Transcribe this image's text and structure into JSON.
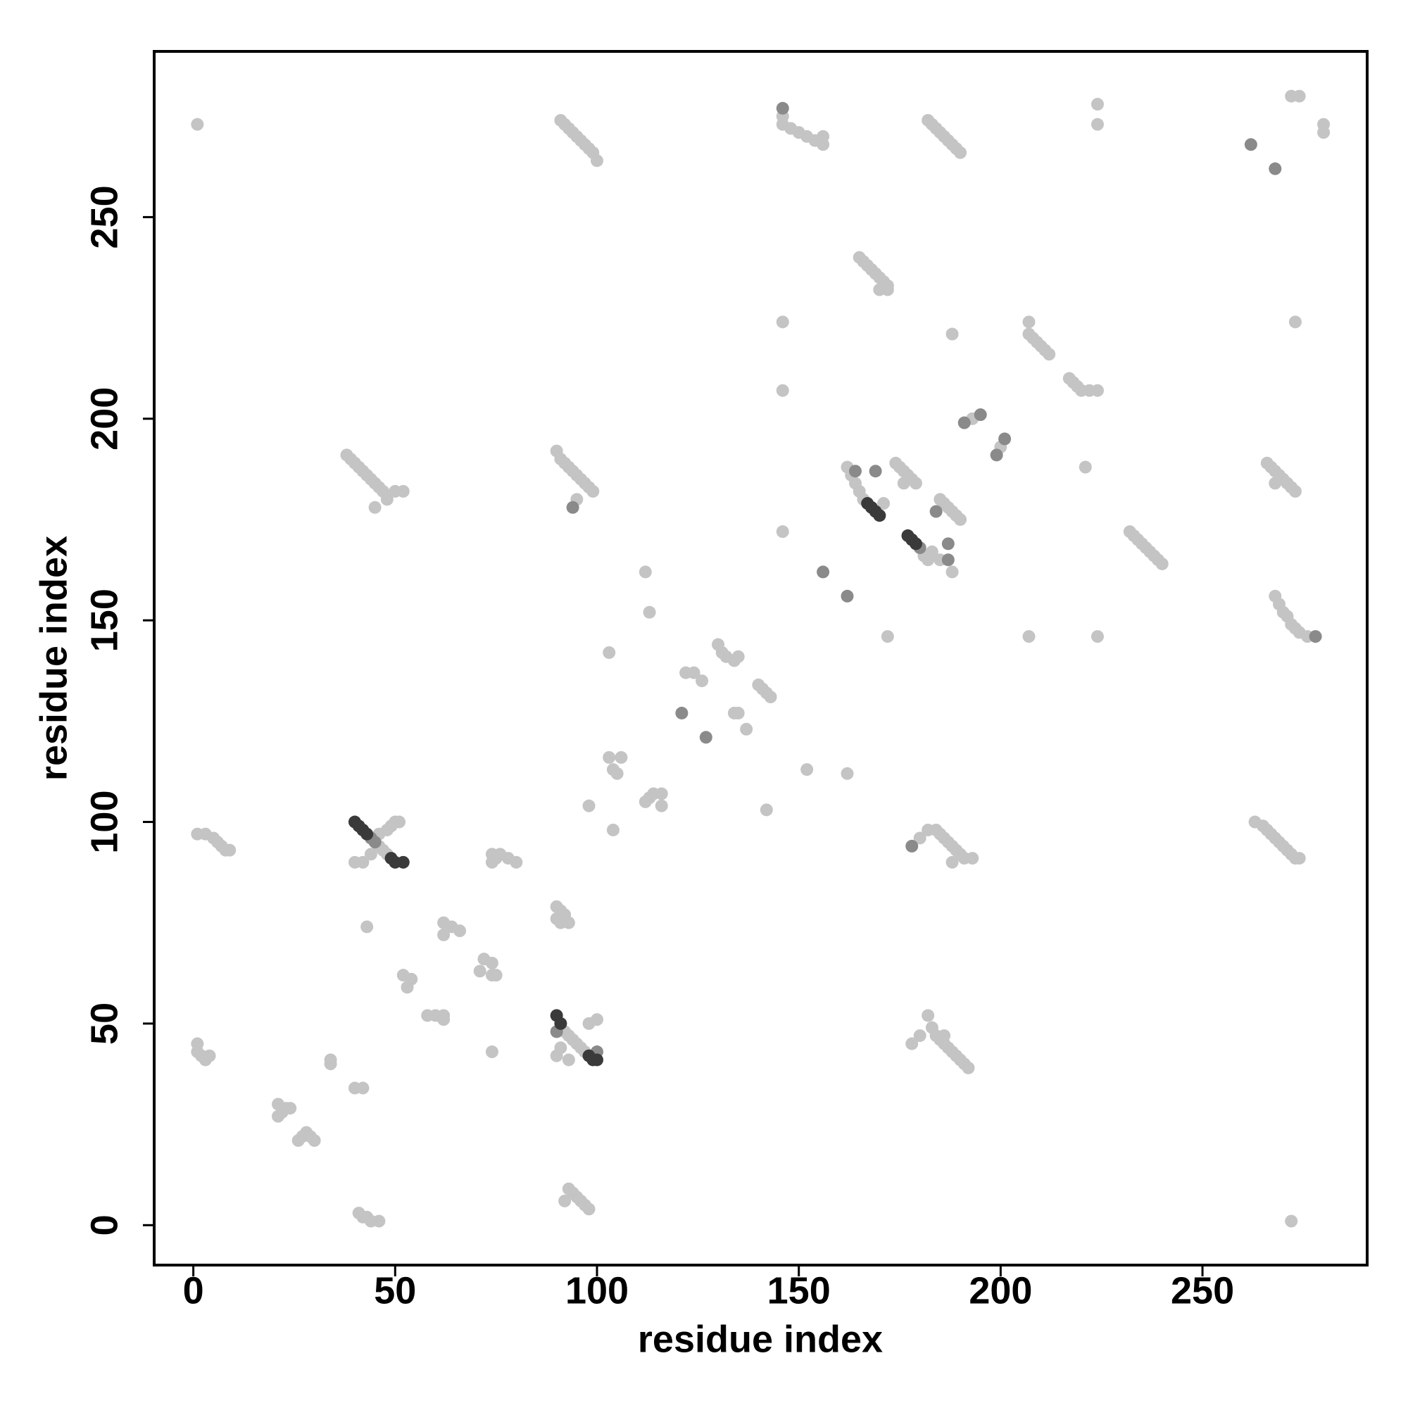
{
  "chart_data": {
    "type": "scatter",
    "x_label": "residue index",
    "y_label": "residue index",
    "xlim": [
      -9.7,
      290.8
    ],
    "ylim": [
      -9.9,
      291.1
    ],
    "xticks": [
      0,
      50,
      100,
      150,
      200,
      250
    ],
    "yticks": [
      0,
      50,
      100,
      150,
      200,
      250
    ],
    "series": [
      {
        "color": "#c4c4c4",
        "x": [
          1,
          91,
          92,
          93,
          94,
          95,
          96,
          97,
          98,
          99,
          100,
          146,
          146,
          148,
          150,
          152,
          154,
          156,
          156,
          182,
          183,
          184,
          185,
          186,
          187,
          188,
          189,
          190,
          224,
          224,
          272,
          274,
          280,
          280,
          165,
          166,
          167,
          168,
          169,
          170,
          171,
          172,
          170,
          172,
          146,
          146,
          188,
          207,
          207,
          208,
          209,
          210,
          211,
          212,
          217,
          218,
          219,
          220,
          222,
          224,
          273,
          193,
          200,
          221,
          38,
          39,
          40,
          41,
          42,
          43,
          44,
          45,
          46,
          47,
          48,
          50,
          52,
          45,
          90,
          91,
          92,
          93,
          94,
          95,
          96,
          97,
          98,
          99,
          95,
          146,
          162,
          163,
          164,
          165,
          166,
          171,
          174,
          175,
          176,
          177,
          178,
          179,
          176,
          181,
          182,
          183,
          185,
          186,
          187,
          188,
          189,
          190,
          188,
          185,
          172,
          232,
          233,
          234,
          235,
          236,
          237,
          238,
          239,
          240,
          266,
          267,
          268,
          269,
          270,
          271,
          272,
          273,
          268,
          268,
          269,
          270,
          271,
          272,
          273,
          274,
          276,
          207,
          224,
          112,
          113,
          103,
          122,
          124,
          126,
          130,
          131,
          132,
          134,
          135,
          140,
          141,
          142,
          143,
          134,
          135,
          137,
          98,
          104,
          103,
          106,
          104,
          105,
          112,
          113,
          114,
          116,
          116,
          152,
          162,
          142,
          46,
          47,
          48,
          50,
          51,
          49,
          48,
          46,
          44,
          42,
          40,
          1,
          3,
          5,
          6,
          7,
          8,
          9,
          74,
          76,
          75,
          78,
          80,
          74,
          180,
          182,
          184,
          185,
          186,
          187,
          188,
          189,
          190,
          191,
          193,
          188,
          263,
          265,
          266,
          267,
          268,
          269,
          270,
          271,
          272,
          273,
          274,
          90,
          91,
          92,
          92,
          93,
          91,
          90,
          43,
          62,
          62,
          64,
          66,
          72,
          74,
          71,
          75,
          74,
          52,
          53,
          54,
          58,
          60,
          62,
          62,
          92,
          93,
          94,
          95,
          96,
          97,
          98,
          100,
          91,
          90,
          93,
          74,
          182,
          183,
          184,
          185,
          186,
          187,
          188,
          189,
          190,
          191,
          192,
          178,
          180,
          186,
          1,
          1,
          2,
          3,
          4,
          34,
          34,
          40,
          42,
          21,
          22,
          23,
          24,
          21,
          27,
          28,
          29,
          30,
          26,
          41,
          42,
          43,
          44,
          46,
          93,
          94,
          95,
          96,
          97,
          98,
          92,
          272
        ],
        "values": [
          273,
          274,
          273,
          272,
          271,
          270,
          269,
          268,
          267,
          266,
          264,
          275,
          273,
          272,
          271,
          270,
          269,
          268,
          270,
          274,
          273,
          272,
          271,
          270,
          269,
          268,
          267,
          266,
          278,
          273,
          280,
          280,
          273,
          271,
          240,
          239,
          238,
          237,
          236,
          235,
          234,
          233,
          232,
          232,
          224,
          207,
          221,
          224,
          221,
          220,
          219,
          218,
          217,
          216,
          210,
          209,
          208,
          207,
          207,
          207,
          224,
          200,
          193,
          188,
          191,
          190,
          189,
          188,
          187,
          186,
          185,
          184,
          183,
          182,
          180,
          182,
          182,
          178,
          192,
          190,
          189,
          188,
          187,
          186,
          185,
          184,
          183,
          182,
          180,
          172,
          188,
          186,
          184,
          182,
          180,
          179,
          189,
          188,
          187,
          186,
          185,
          184,
          184,
          166,
          165,
          167,
          180,
          179,
          178,
          177,
          176,
          175,
          162,
          165,
          146,
          172,
          171,
          170,
          169,
          168,
          167,
          166,
          165,
          164,
          189,
          188,
          187,
          186,
          185,
          184,
          183,
          182,
          184,
          156,
          154,
          152,
          151,
          149,
          148,
          147,
          146,
          146,
          146,
          162,
          152,
          142,
          137,
          137,
          135,
          144,
          142,
          141,
          140,
          141,
          134,
          133,
          132,
          131,
          127,
          127,
          123,
          104,
          98,
          116,
          116,
          113,
          112,
          105,
          106,
          107,
          104,
          107,
          113,
          112,
          103,
          94,
          93,
          92,
          100,
          100,
          99,
          98,
          97,
          92,
          90,
          90,
          97,
          97,
          96,
          95,
          94,
          93,
          93,
          92,
          92,
          91,
          91,
          90,
          90,
          96,
          98,
          98,
          97,
          96,
          95,
          94,
          93,
          92,
          91,
          91,
          90,
          100,
          99,
          98,
          97,
          96,
          95,
          94,
          93,
          92,
          91,
          91,
          79,
          78,
          77,
          76,
          75,
          75,
          76,
          74,
          75,
          72,
          74,
          73,
          66,
          65,
          63,
          62,
          62,
          62,
          59,
          61,
          52,
          52,
          51,
          52,
          48,
          47,
          46,
          45,
          44,
          43,
          50,
          51,
          44,
          42,
          41,
          43,
          52,
          49,
          47,
          46,
          45,
          44,
          43,
          42,
          41,
          40,
          39,
          45,
          47,
          47,
          45,
          43,
          42,
          41,
          42,
          41,
          40,
          34,
          34,
          30,
          28,
          29,
          29,
          27,
          22,
          23,
          22,
          21,
          21,
          3,
          2,
          2,
          1,
          1,
          9,
          8,
          7,
          6,
          5,
          4,
          6,
          1
        ]
      },
      {
        "color": "#8a8a8a",
        "x": [
          146,
          262,
          268,
          191,
          195,
          199,
          201,
          94,
          169,
          164,
          184,
          187,
          187,
          156,
          162,
          278,
          127,
          121,
          178,
          44,
          90,
          100,
          45,
          180
        ],
        "values": [
          277,
          268,
          262,
          199,
          201,
          191,
          195,
          178,
          187,
          187,
          177,
          169,
          165,
          162,
          156,
          146,
          121,
          127,
          94,
          96,
          48,
          43,
          95,
          168
        ]
      },
      {
        "color": "#3a3a3a",
        "x": [
          90,
          91,
          98,
          99,
          100,
          40,
          41,
          42,
          43,
          49,
          50,
          52,
          167,
          168,
          169,
          170,
          177,
          178,
          179
        ],
        "values": [
          52,
          50,
          42,
          41,
          41,
          100,
          99,
          98,
          97,
          91,
          90,
          90,
          179,
          178,
          177,
          176,
          171,
          170,
          169
        ]
      }
    ]
  }
}
